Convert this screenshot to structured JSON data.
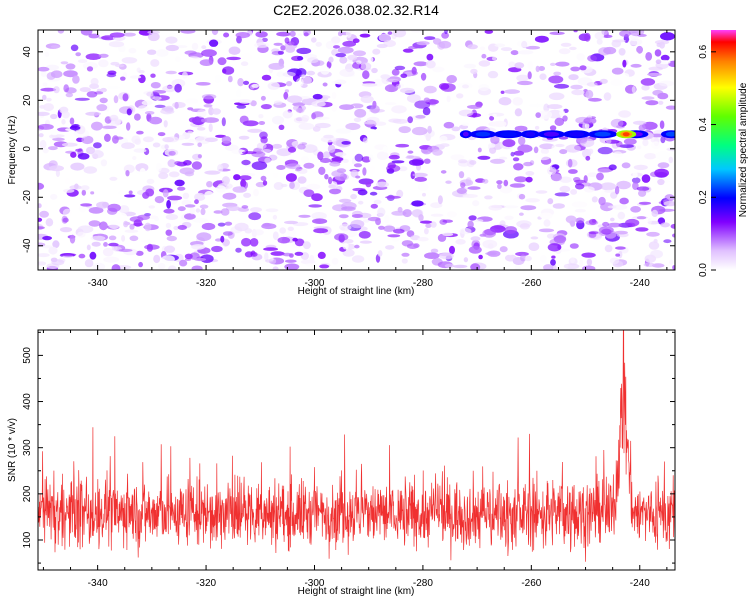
{
  "title": "C2E2.2026.038.02.32.R14",
  "chart_data": [
    {
      "type": "heatmap",
      "title": "C2E2.2026.038.02.32.R14",
      "xlabel": "Height of straight line (km)",
      "ylabel": "Frequency (Hz)",
      "xlim": [
        -351,
        -233.5
      ],
      "ylim": [
        -50,
        49
      ],
      "xticks": [
        -340,
        -320,
        -300,
        -280,
        -260,
        -240
      ],
      "yticks": [
        -40,
        -20,
        0,
        20,
        40
      ],
      "colorbar": {
        "label": "Normalized spectral amplitude",
        "range": [
          0.0,
          0.66
        ],
        "ticks": [
          0.0,
          0.2,
          0.4,
          0.6
        ]
      },
      "features": [
        {
          "description": "background noise",
          "amplitude_range": [
            0.0,
            0.15
          ]
        },
        {
          "description": "persistent tone near 6 Hz",
          "x_range": [
            -273,
            -234
          ],
          "frequency": 6,
          "peak_amplitude": 0.25
        },
        {
          "description": "strongest peak",
          "x": -242.5,
          "frequency": 6,
          "amplitude": 0.6
        }
      ]
    },
    {
      "type": "line",
      "xlabel": "Height of straight line (km)",
      "ylabel": "SNR (10 * v/v)",
      "xlim": [
        -351,
        -233.5
      ],
      "ylim": [
        35,
        555
      ],
      "xticks": [
        -340,
        -320,
        -300,
        -280,
        -260,
        -240
      ],
      "yticks": [
        100,
        200,
        300,
        400,
        500
      ],
      "series": [
        {
          "name": "SNR",
          "color": "#f03030",
          "baseline_band": [
            75,
            240
          ],
          "typical_spikes_to": 380,
          "peak": {
            "x": -243,
            "y": 555
          }
        }
      ]
    }
  ]
}
